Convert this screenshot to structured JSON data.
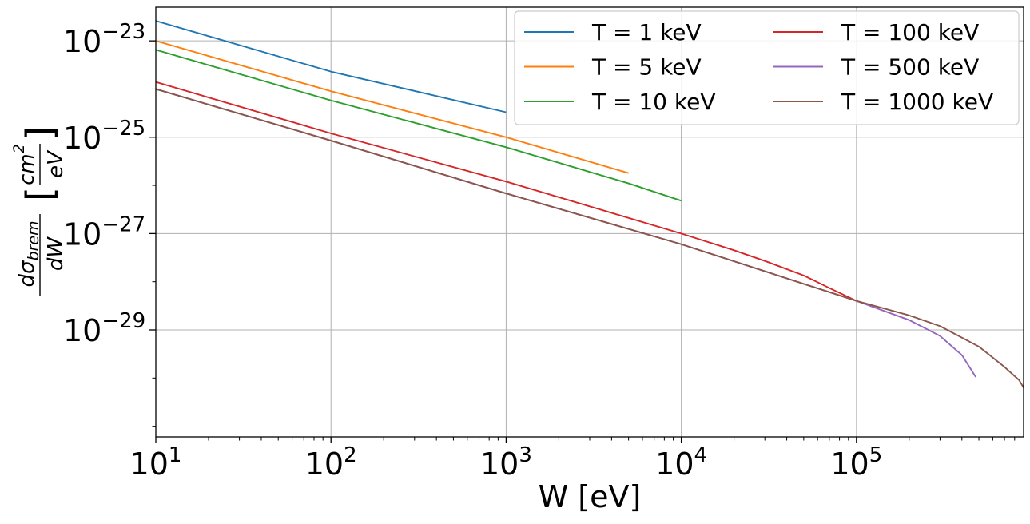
{
  "chart_data": {
    "type": "line",
    "xscale": "log",
    "yscale": "log",
    "xlim": [
      10,
      900000
    ],
    "ylim": [
      6e-32,
      5e-23
    ],
    "grid": true,
    "xlabel": "W [eV]",
    "ylabel": {
      "numerator": "dσ",
      "numerator_sub": "brem",
      "denominator": "dW",
      "unit_numerator": "cm",
      "unit_numerator_power": "2",
      "unit_denominator": "eV",
      "bracket_open": "[",
      "bracket_close": "]"
    },
    "x_ticks": [
      {
        "base": "10",
        "exp": "1",
        "value": 10
      },
      {
        "base": "10",
        "exp": "2",
        "value": 100
      },
      {
        "base": "10",
        "exp": "3",
        "value": 1000
      },
      {
        "base": "10",
        "exp": "4",
        "value": 10000
      },
      {
        "base": "10",
        "exp": "5",
        "value": 100000
      }
    ],
    "y_ticks": [
      {
        "base": "10",
        "exp": "−23",
        "value": 1e-23
      },
      {
        "base": "10",
        "exp": "−25",
        "value": 1e-25
      },
      {
        "base": "10",
        "exp": "−27",
        "value": 1e-27
      },
      {
        "base": "10",
        "exp": "−29",
        "value": 1e-29
      }
    ],
    "legend_position": "top-right",
    "legend_columns": 2,
    "series": [
      {
        "name": "T = 1 keV",
        "color": "#1f77b4",
        "x": [
          10,
          100,
          1000
        ],
        "y": [
          2.6e-23,
          2.3e-24,
          3.3e-25
        ]
      },
      {
        "name": "T = 5 keV",
        "color": "#ff7f0e",
        "x": [
          10,
          100,
          1000,
          5000
        ],
        "y": [
          1e-23,
          9e-25,
          1e-25,
          1.8e-26
        ]
      },
      {
        "name": "T = 10 keV",
        "color": "#2ca02c",
        "x": [
          10,
          100,
          1000,
          5000,
          10000
        ],
        "y": [
          6.5e-24,
          5.8e-25,
          6.2e-26,
          1.1e-26,
          4.8e-27
        ]
      },
      {
        "name": "T = 100 keV",
        "color": "#d62728",
        "x": [
          10,
          100,
          1000,
          10000,
          20000,
          30000,
          50000,
          70000,
          100000
        ],
        "y": [
          1.4e-24,
          1.2e-25,
          1.2e-26,
          1e-27,
          4.5e-28,
          2.7e-28,
          1.35e-28,
          7.4e-29,
          4e-29
        ]
      },
      {
        "name": "T = 500 keV",
        "color": "#9467bd",
        "x": [
          10,
          100,
          1000,
          10000,
          100000,
          200000,
          300000,
          400000,
          480000
        ],
        "y": [
          1e-24,
          8.5e-26,
          6.8e-27,
          6e-28,
          4e-29,
          1.6e-29,
          7.5e-30,
          3e-30,
          1.05e-30
        ]
      },
      {
        "name": "T = 1000 keV",
        "color": "#8c564b",
        "x": [
          10,
          100,
          1000,
          10000,
          100000,
          200000,
          300000,
          500000,
          700000,
          850000,
          900000
        ],
        "y": [
          1e-24,
          8.5e-26,
          6.8e-27,
          6e-28,
          4e-29,
          2e-29,
          1.2e-29,
          4.5e-30,
          1.7e-30,
          9e-31,
          6.3e-31
        ]
      }
    ]
  }
}
